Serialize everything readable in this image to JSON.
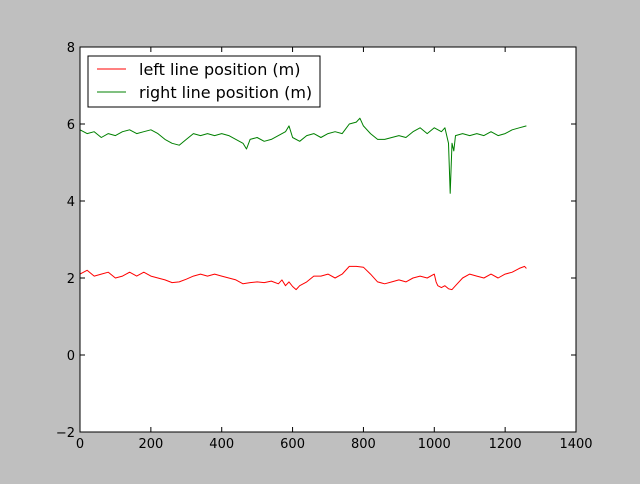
{
  "chart_data": {
    "type": "line",
    "title": "",
    "xlabel": "",
    "ylabel": "",
    "xlim": [
      0,
      1400
    ],
    "ylim": [
      -2,
      8
    ],
    "xticks": [
      0,
      200,
      400,
      600,
      800,
      1000,
      1200,
      1400
    ],
    "yticks": [
      -2,
      0,
      2,
      4,
      6,
      8
    ],
    "x_tick_labels": [
      "0",
      "200",
      "400",
      "600",
      "800",
      "1000",
      "1200",
      "1400"
    ],
    "y_tick_labels": [
      "−2",
      "0",
      "2",
      "4",
      "6",
      "8"
    ],
    "grid": false,
    "legend": {
      "position": "top-left",
      "entries": [
        "left line position (m)",
        "right line position (m)"
      ]
    },
    "series": [
      {
        "name": "left line position (m)",
        "color": "#ff0000",
        "x": [
          0,
          20,
          40,
          60,
          80,
          100,
          120,
          140,
          160,
          180,
          200,
          220,
          240,
          260,
          280,
          300,
          320,
          340,
          360,
          380,
          400,
          420,
          440,
          460,
          480,
          500,
          520,
          540,
          560,
          570,
          580,
          590,
          600,
          610,
          620,
          640,
          660,
          680,
          700,
          720,
          740,
          760,
          780,
          800,
          820,
          840,
          860,
          880,
          900,
          920,
          940,
          960,
          980,
          1000,
          1005,
          1010,
          1020,
          1030,
          1040,
          1050,
          1060,
          1080,
          1100,
          1120,
          1140,
          1160,
          1180,
          1200,
          1220,
          1240,
          1255,
          1260
        ],
        "values": [
          2.1,
          2.2,
          2.05,
          2.1,
          2.15,
          2.0,
          2.05,
          2.15,
          2.05,
          2.15,
          2.05,
          2.0,
          1.95,
          1.88,
          1.9,
          1.97,
          2.05,
          2.1,
          2.05,
          2.1,
          2.05,
          2.0,
          1.95,
          1.85,
          1.88,
          1.9,
          1.88,
          1.92,
          1.85,
          1.95,
          1.8,
          1.9,
          1.78,
          1.7,
          1.8,
          1.9,
          2.05,
          2.05,
          2.1,
          2.0,
          2.1,
          2.3,
          2.3,
          2.28,
          2.1,
          1.9,
          1.85,
          1.9,
          1.95,
          1.9,
          2.0,
          2.05,
          2.0,
          2.1,
          1.9,
          1.8,
          1.75,
          1.8,
          1.72,
          1.7,
          1.8,
          2.0,
          2.1,
          2.05,
          2.0,
          2.1,
          2.0,
          2.1,
          2.15,
          2.25,
          2.3,
          2.25
        ]
      },
      {
        "name": "right line position (m)",
        "color": "#008000",
        "x": [
          0,
          20,
          40,
          60,
          80,
          100,
          120,
          140,
          160,
          180,
          200,
          220,
          240,
          260,
          280,
          300,
          320,
          340,
          360,
          380,
          400,
          420,
          440,
          460,
          470,
          480,
          500,
          520,
          540,
          560,
          580,
          590,
          600,
          620,
          640,
          660,
          680,
          700,
          720,
          740,
          760,
          780,
          790,
          800,
          820,
          840,
          860,
          880,
          900,
          920,
          940,
          960,
          980,
          1000,
          1020,
          1030,
          1040,
          1045,
          1050,
          1055,
          1060,
          1080,
          1100,
          1120,
          1140,
          1160,
          1180,
          1200,
          1220,
          1240,
          1260
        ],
        "values": [
          5.85,
          5.75,
          5.8,
          5.65,
          5.75,
          5.7,
          5.8,
          5.85,
          5.75,
          5.8,
          5.85,
          5.75,
          5.6,
          5.5,
          5.45,
          5.6,
          5.75,
          5.7,
          5.75,
          5.7,
          5.75,
          5.7,
          5.6,
          5.5,
          5.35,
          5.6,
          5.65,
          5.55,
          5.6,
          5.7,
          5.8,
          5.95,
          5.65,
          5.55,
          5.7,
          5.75,
          5.65,
          5.75,
          5.8,
          5.75,
          6.0,
          6.05,
          6.15,
          5.95,
          5.75,
          5.6,
          5.6,
          5.65,
          5.7,
          5.65,
          5.8,
          5.9,
          5.75,
          5.9,
          5.8,
          5.9,
          5.5,
          4.2,
          5.5,
          5.3,
          5.7,
          5.75,
          5.7,
          5.75,
          5.7,
          5.8,
          5.7,
          5.75,
          5.85,
          5.9,
          5.95
        ]
      }
    ]
  }
}
